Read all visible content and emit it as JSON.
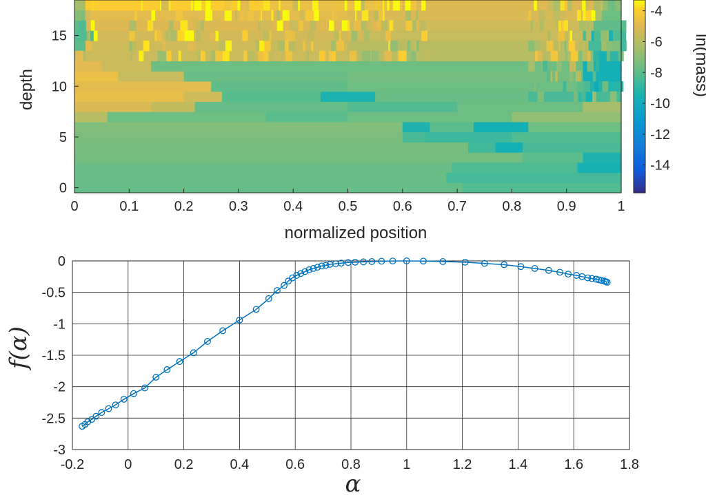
{
  "chart_data": [
    {
      "type": "heatmap",
      "title": "",
      "xlabel": "normalized position",
      "ylabel": "depth",
      "xlim": [
        0,
        1
      ],
      "ylim": [
        -0.5,
        18.5
      ],
      "xticks": [
        "0",
        "0.1",
        "0.2",
        "0.3",
        "0.4",
        "0.5",
        "0.6",
        "0.7",
        "0.8",
        "0.9",
        "1"
      ],
      "yticks": [
        "0",
        "5",
        "10",
        "15"
      ],
      "colorbar": {
        "label": "ln(mass)",
        "range": [
          -15.8,
          -3.3
        ],
        "ticks": [
          "-4",
          "-6",
          "-8",
          "-10",
          "-12",
          "-14"
        ],
        "colormap": "parula"
      },
      "rows": [
        {
          "depth": 0,
          "segments": [
            [
              0,
              0.71,
              -7.8
            ],
            [
              0.71,
              1,
              -8.2
            ]
          ]
        },
        {
          "depth": 1,
          "segments": [
            [
              0,
              0.68,
              -7.7
            ],
            [
              0.68,
              1,
              -8.5
            ]
          ]
        },
        {
          "depth": 2,
          "segments": [
            [
              0,
              0.69,
              -7.7
            ],
            [
              0.69,
              0.92,
              -8.3
            ],
            [
              0.92,
              1,
              -9.5
            ]
          ]
        },
        {
          "depth": 3,
          "segments": [
            [
              0,
              0.82,
              -7.5
            ],
            [
              0.82,
              0.93,
              -8.0
            ],
            [
              0.93,
              1,
              -9.3
            ]
          ]
        },
        {
          "depth": 4,
          "segments": [
            [
              0,
              0.72,
              -7.4
            ],
            [
              0.72,
              0.77,
              -8.6
            ],
            [
              0.77,
              0.82,
              -9.6
            ],
            [
              0.82,
              1,
              -8.4
            ]
          ]
        },
        {
          "depth": 5,
          "segments": [
            [
              0,
              0.6,
              -7.3
            ],
            [
              0.6,
              0.64,
              -8.4
            ],
            [
              0.64,
              0.8,
              -8.7
            ],
            [
              0.8,
              1,
              -8.2
            ]
          ]
        },
        {
          "depth": 6,
          "segments": [
            [
              0,
              0.6,
              -7.2
            ],
            [
              0.6,
              0.65,
              -9.3
            ],
            [
              0.65,
              0.73,
              -8.0
            ],
            [
              0.73,
              0.83,
              -9.6
            ],
            [
              0.83,
              1,
              -7.6
            ]
          ]
        },
        {
          "depth": 7,
          "segments": [
            [
              0,
              0.06,
              -6.0
            ],
            [
              0.06,
              0.35,
              -7.6
            ],
            [
              0.35,
              0.5,
              -8.0
            ],
            [
              0.5,
              0.8,
              -7.6
            ],
            [
              0.8,
              1,
              -6.8
            ]
          ]
        },
        {
          "depth": 8,
          "segments": [
            [
              0,
              0.14,
              -5.1
            ],
            [
              0.14,
              0.22,
              -5.7
            ],
            [
              0.22,
              0.5,
              -7.8
            ],
            [
              0.5,
              0.7,
              -8.2
            ],
            [
              0.7,
              0.93,
              -7.6
            ],
            [
              0.93,
              1,
              -6.4
            ]
          ]
        },
        {
          "depth": 9,
          "segments": [
            [
              0,
              0.2,
              -4.7
            ],
            [
              0.2,
              0.27,
              -5.4
            ],
            [
              0.27,
              0.45,
              -8.1
            ],
            [
              0.45,
              0.55,
              -9.4
            ],
            [
              0.55,
              0.83,
              -7.7
            ],
            [
              0.83,
              1,
              -8.4
            ]
          ]
        },
        {
          "depth": 10,
          "segments": [
            [
              0,
              0.25,
              -4.8
            ],
            [
              0.25,
              0.5,
              -7.9
            ],
            [
              0.5,
              0.93,
              -7.6
            ],
            [
              0.93,
              1,
              -9.2
            ]
          ]
        },
        {
          "depth": 11,
          "segments": [
            [
              0,
              0.08,
              -4.6
            ],
            [
              0.08,
              0.2,
              -5.6
            ],
            [
              0.2,
              0.5,
              -7.7
            ],
            [
              0.5,
              0.93,
              -7.5
            ],
            [
              0.93,
              1,
              -9.7
            ]
          ]
        },
        {
          "depth": 12,
          "segments": [
            [
              0,
              0.05,
              -4.9
            ],
            [
              0.05,
              0.14,
              -5.5
            ],
            [
              0.14,
              0.5,
              -7.6
            ],
            [
              0.5,
              0.93,
              -7.6
            ],
            [
              0.93,
              1,
              -9.6
            ]
          ]
        },
        {
          "depth": 13,
          "segments": [
            [
              0,
              0.02,
              -6.2
            ],
            [
              0.02,
              0.5,
              -5.5
            ],
            [
              0.5,
              0.94,
              -6.0
            ],
            [
              0.94,
              1,
              -9.0
            ]
          ]
        },
        {
          "depth": 14,
          "segments": [
            [
              0,
              0.02,
              -8.0
            ],
            [
              0.02,
              0.5,
              -5.4
            ],
            [
              0.5,
              0.94,
              -5.9
            ],
            [
              0.94,
              1,
              -8.5
            ]
          ]
        },
        {
          "depth": 15,
          "segments": [
            [
              0,
              0.03,
              -8.2
            ],
            [
              0.03,
              0.5,
              -5.3
            ],
            [
              0.5,
              0.93,
              -5.6
            ],
            [
              0.93,
              1,
              -8.3
            ]
          ]
        },
        {
          "depth": 16,
          "segments": [
            [
              0,
              0.02,
              -8.0
            ],
            [
              0.02,
              0.5,
              -5.0
            ],
            [
              0.5,
              0.93,
              -5.4
            ],
            [
              0.93,
              1,
              -7.9
            ]
          ]
        },
        {
          "depth": 17,
          "segments": [
            [
              0,
              0.02,
              -7.3
            ],
            [
              0.02,
              0.5,
              -4.8
            ],
            [
              0.5,
              0.95,
              -5.1
            ],
            [
              0.95,
              1,
              -7.6
            ]
          ]
        },
        {
          "depth": 18,
          "segments": [
            [
              0,
              0.02,
              -6.4
            ],
            [
              0.02,
              0.35,
              -4.0
            ],
            [
              0.35,
              0.6,
              -4.6
            ],
            [
              0.6,
              0.95,
              -5.0
            ],
            [
              0.95,
              1,
              -7.0
            ]
          ]
        }
      ],
      "noisy_regions": [
        {
          "x": [
            0.0,
            0.04
          ],
          "depth": [
            12.5,
            18.5
          ]
        },
        {
          "x": [
            0.1,
            0.65
          ],
          "depth": [
            12.5,
            18.5
          ]
        },
        {
          "x": [
            0.83,
            1.0
          ],
          "depth": [
            8.5,
            18.5
          ]
        }
      ]
    },
    {
      "type": "line",
      "title": "",
      "xlabel": "α",
      "ylabel": "f(α)",
      "xlim": [
        -0.2,
        1.8
      ],
      "ylim": [
        -3,
        0
      ],
      "xticks": [
        "-0.2",
        "0",
        "0.2",
        "0.4",
        "0.6",
        "0.8",
        "1",
        "1.2",
        "1.4",
        "1.6",
        "1.8"
      ],
      "yticks": [
        "0",
        "-0.5",
        "-1",
        "-1.5",
        "-2",
        "-2.5",
        "-3"
      ],
      "grid": true,
      "series": [
        {
          "name": "f(alpha)",
          "marker": "circle",
          "color": "#0072bd",
          "x": [
            -0.165,
            -0.155,
            -0.145,
            -0.13,
            -0.115,
            -0.095,
            -0.07,
            -0.045,
            -0.015,
            0.02,
            0.06,
            0.1,
            0.14,
            0.185,
            0.235,
            0.285,
            0.34,
            0.4,
            0.46,
            0.505,
            0.535,
            0.56,
            0.575,
            0.59,
            0.605,
            0.62,
            0.635,
            0.65,
            0.665,
            0.68,
            0.695,
            0.71,
            0.725,
            0.745,
            0.765,
            0.79,
            0.815,
            0.845,
            0.875,
            0.91,
            0.95,
            1.0,
            1.06,
            1.13,
            1.21,
            1.28,
            1.35,
            1.41,
            1.46,
            1.51,
            1.55,
            1.58,
            1.61,
            1.63,
            1.65,
            1.665,
            1.68,
            1.69,
            1.7,
            1.71,
            1.715,
            1.72
          ],
          "y": [
            -2.63,
            -2.6,
            -2.56,
            -2.52,
            -2.47,
            -2.41,
            -2.35,
            -2.29,
            -2.2,
            -2.11,
            -2.02,
            -1.85,
            -1.73,
            -1.6,
            -1.46,
            -1.28,
            -1.11,
            -0.94,
            -0.77,
            -0.6,
            -0.47,
            -0.39,
            -0.32,
            -0.27,
            -0.23,
            -0.2,
            -0.17,
            -0.14,
            -0.12,
            -0.1,
            -0.08,
            -0.07,
            -0.055,
            -0.045,
            -0.035,
            -0.025,
            -0.02,
            -0.015,
            -0.01,
            -0.005,
            -0.002,
            0.0,
            -0.003,
            -0.01,
            -0.02,
            -0.04,
            -0.06,
            -0.09,
            -0.12,
            -0.15,
            -0.18,
            -0.21,
            -0.23,
            -0.25,
            -0.27,
            -0.28,
            -0.29,
            -0.3,
            -0.31,
            -0.32,
            -0.33,
            -0.34
          ]
        }
      ]
    }
  ]
}
